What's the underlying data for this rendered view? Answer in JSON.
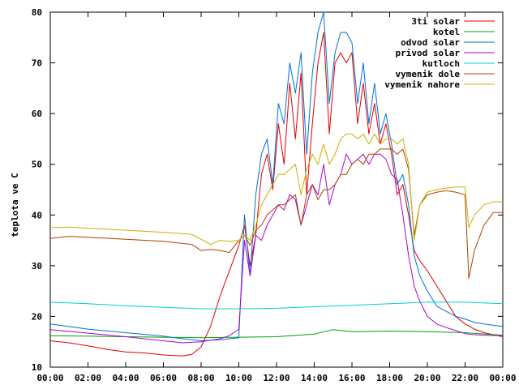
{
  "chart_data": {
    "type": "line",
    "ylabel": "teplota ve C",
    "xlabel": "",
    "title": "",
    "xlim": [
      0,
      24
    ],
    "ylim": [
      10,
      80
    ],
    "x_ticks": [
      "00:00",
      "02:00",
      "04:00",
      "06:00",
      "08:00",
      "10:00",
      "12:00",
      "14:00",
      "16:00",
      "18:00",
      "20:00",
      "22:00",
      "00:00"
    ],
    "y_ticks": [
      10,
      20,
      30,
      40,
      50,
      60,
      70,
      80
    ],
    "grid": false,
    "legend_position": "top-right",
    "series": [
      {
        "name": "3ti solar",
        "color": "#e00000",
        "x": [
          0,
          1,
          2,
          3,
          4,
          5,
          6,
          7,
          7.5,
          8,
          8.5,
          9,
          9.5,
          10,
          10.3,
          10.6,
          10.9,
          11.2,
          11.5,
          11.8,
          12.1,
          12.4,
          12.7,
          13.0,
          13.3,
          13.6,
          13.9,
          14.2,
          14.5,
          14.8,
          15.1,
          15.4,
          15.7,
          16.0,
          16.3,
          16.6,
          16.9,
          17.2,
          17.5,
          17.8,
          18.1,
          18.4,
          18.7,
          19.0,
          19.3,
          19.6,
          20,
          20.5,
          21,
          21.5,
          22,
          22.5,
          23,
          24
        ],
        "values": [
          15.2,
          14.8,
          14.2,
          13.5,
          13,
          12.8,
          12.4,
          12.2,
          12.5,
          14,
          18,
          24,
          29,
          34,
          38,
          30,
          36,
          48,
          52,
          45,
          58,
          50,
          66,
          55,
          68,
          44,
          58,
          70,
          76,
          56,
          70,
          72,
          70,
          72,
          58,
          66,
          56,
          62,
          54,
          58,
          52,
          44,
          46,
          40,
          33,
          31,
          29,
          26,
          23,
          20,
          18.5,
          17.5,
          16.8,
          16.0
        ]
      },
      {
        "name": "kotel",
        "color": "#00a000",
        "x": [
          0,
          2,
          4,
          6,
          8,
          10,
          12,
          14,
          15,
          16,
          18,
          20,
          22,
          24
        ],
        "values": [
          16.2,
          16.1,
          16.0,
          15.9,
          15.8,
          15.9,
          16.0,
          16.5,
          17.4,
          17.0,
          17.1,
          17.0,
          16.8,
          16.3
        ]
      },
      {
        "name": "odvod solar",
        "color": "#0070d0",
        "x": [
          0,
          2,
          4,
          6,
          7,
          8,
          9,
          10,
          10.3,
          10.6,
          10.9,
          11.2,
          11.5,
          11.8,
          12.1,
          12.4,
          12.7,
          13.0,
          13.3,
          13.6,
          13.9,
          14.2,
          14.5,
          14.8,
          15.1,
          15.4,
          15.7,
          16.0,
          16.3,
          16.6,
          16.9,
          17.2,
          17.5,
          17.8,
          18.1,
          18.4,
          18.7,
          19.0,
          19.3,
          19.6,
          20,
          20.5,
          21,
          21.5,
          22,
          22.5,
          23,
          24
        ],
        "values": [
          18.5,
          17.5,
          16.8,
          16.1,
          15.6,
          15.2,
          15.4,
          15.8,
          40,
          28,
          44,
          52,
          55,
          46,
          62,
          58,
          70,
          64,
          72,
          52,
          68,
          76,
          80,
          62,
          72,
          76,
          76,
          74,
          62,
          70,
          58,
          66,
          56,
          60,
          54,
          46,
          48,
          42,
          32,
          28,
          25,
          22,
          21,
          20,
          19.5,
          18.8,
          18.5,
          18.0
        ]
      },
      {
        "name": "privod solar",
        "color": "#b000d0",
        "x": [
          0,
          2,
          4,
          6,
          7,
          8,
          9,
          9.5,
          10,
          10.3,
          10.6,
          10.9,
          11.2,
          11.5,
          11.8,
          12.1,
          12.4,
          12.7,
          13.0,
          13.3,
          13.6,
          13.9,
          14.2,
          14.5,
          14.8,
          15.1,
          15.4,
          15.7,
          16.0,
          16.3,
          16.6,
          16.9,
          17.2,
          17.5,
          17.8,
          18.1,
          18.4,
          18.7,
          19.0,
          19.3,
          19.6,
          20,
          20.5,
          21,
          21.5,
          22,
          22.5,
          23,
          24
        ],
        "values": [
          17.4,
          16.7,
          16.0,
          15.2,
          14.8,
          15.0,
          15.6,
          16.2,
          17.5,
          35,
          28,
          36,
          35,
          38,
          40,
          42,
          41,
          44,
          43,
          38,
          42,
          46,
          44,
          50,
          42,
          46,
          48,
          52,
          50,
          51,
          52,
          50,
          52,
          52,
          51,
          48,
          47,
          40,
          32,
          26,
          23,
          20,
          18.5,
          17.8,
          17.2,
          16.6,
          16.4,
          16.3,
          16.2
        ]
      },
      {
        "name": "kutloch",
        "color": "#00d0d0",
        "x": [
          0,
          2,
          4,
          6,
          8,
          10,
          12,
          14,
          16,
          18,
          20,
          22,
          24
        ],
        "values": [
          22.8,
          22.5,
          22.1,
          21.8,
          21.5,
          21.5,
          21.6,
          21.9,
          22.2,
          22.5,
          22.8,
          22.8,
          22.5
        ]
      },
      {
        "name": "vymenik dole",
        "color": "#b04000",
        "x": [
          0,
          1,
          2,
          4,
          6,
          7.5,
          8,
          8.5,
          9,
          9.5,
          10,
          10.3,
          10.6,
          10.9,
          11.2,
          11.5,
          11.8,
          12.1,
          12.4,
          12.7,
          13.0,
          13.3,
          13.6,
          13.9,
          14.2,
          14.5,
          14.8,
          15.1,
          15.4,
          15.7,
          16.0,
          16.3,
          16.6,
          16.9,
          17.2,
          17.5,
          17.8,
          18.1,
          18.4,
          18.7,
          19.0,
          19.3,
          19.6,
          20,
          20.5,
          21,
          21.5,
          22,
          22.2,
          22.5,
          23,
          23.5,
          24
        ],
        "values": [
          35.4,
          35.8,
          35.6,
          35.2,
          34.8,
          34.2,
          33.0,
          33.2,
          33.0,
          32.6,
          35,
          36,
          34,
          37,
          38,
          40,
          41,
          42,
          42,
          43,
          44,
          38,
          44,
          46,
          43,
          45,
          45,
          46,
          48,
          48,
          50,
          51,
          50,
          52,
          52,
          53,
          53,
          53,
          52,
          53,
          49,
          36,
          42,
          44,
          44.5,
          44.8,
          44.5,
          44.0,
          27.5,
          33,
          38,
          40.5,
          40.5
        ]
      },
      {
        "name": "vymenik nahore",
        "color": "#c8b000",
        "x": [
          0,
          1,
          2,
          4,
          6,
          7.5,
          8,
          8.5,
          9,
          9.5,
          10,
          10.3,
          10.6,
          10.9,
          11.2,
          11.5,
          11.8,
          12.1,
          12.4,
          12.7,
          13.0,
          13.3,
          13.6,
          13.9,
          14.2,
          14.5,
          14.8,
          15.1,
          15.4,
          15.7,
          16.0,
          16.3,
          16.6,
          16.9,
          17.2,
          17.5,
          17.8,
          18.1,
          18.4,
          18.7,
          19.0,
          19.3,
          19.6,
          20,
          20.5,
          21,
          21.5,
          22,
          22.2,
          22.5,
          23,
          23.5,
          24
        ],
        "values": [
          37.5,
          37.6,
          37.4,
          37.0,
          36.6,
          36.2,
          35.2,
          34.2,
          35.0,
          34.8,
          35,
          36,
          35,
          38,
          42,
          44,
          46,
          48,
          48,
          49,
          50,
          44,
          49,
          52,
          50,
          54,
          50,
          52,
          55,
          56,
          56,
          55,
          56,
          54,
          56,
          54,
          55,
          55,
          54,
          55,
          50,
          35,
          42,
          44.5,
          45,
          45.3,
          45.5,
          45.5,
          37.5,
          40,
          42,
          42.6,
          42.6
        ]
      }
    ]
  }
}
